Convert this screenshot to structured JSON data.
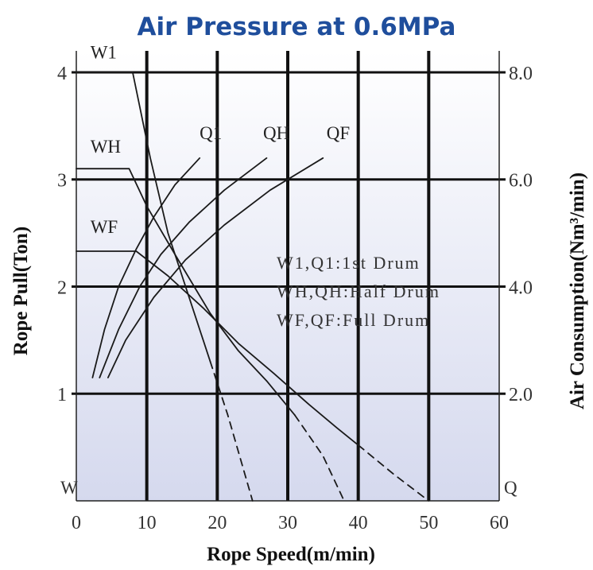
{
  "chart_data": {
    "type": "line",
    "title": "Air Pressure at 0.6MPa",
    "xlabel": "Rope Speed(m/min)",
    "ylabel_left": "Rope Pull(Ton)",
    "ylabel_right": "Air Consumption(Nm³/min)",
    "left_axis_symbol": "W",
    "right_axis_symbol": "Q",
    "xlim": [
      0,
      60
    ],
    "ylim_left": [
      0,
      4.2
    ],
    "ylim_right": [
      0,
      8.4
    ],
    "x_ticks": [
      "0",
      "10",
      "20",
      "30",
      "40",
      "50",
      "60"
    ],
    "y_ticks_left": [
      "1",
      "2",
      "3",
      "4"
    ],
    "y_ticks_right": [
      "2.0",
      "4.0",
      "6.0",
      "8.0"
    ],
    "grid": true,
    "legend_lines": [
      "W1,Q1:1st  Drum",
      "WH,QH:Half Drum",
      "WF,QF:Full Drum"
    ],
    "series": [
      {
        "name": "W1",
        "axis": "left",
        "style": "solid",
        "points": [
          [
            0,
            4.0
          ],
          [
            8,
            4.0
          ],
          [
            10.5,
            3.2
          ],
          [
            13,
            2.5
          ],
          [
            16,
            1.9
          ],
          [
            19,
            1.3
          ]
        ]
      },
      {
        "name": "W1",
        "axis": "left",
        "style": "dashed",
        "points": [
          [
            19,
            1.3
          ],
          [
            21.5,
            0.8
          ],
          [
            25,
            0
          ]
        ]
      },
      {
        "name": "WH",
        "axis": "left",
        "style": "solid",
        "points": [
          [
            0,
            3.1
          ],
          [
            7.5,
            3.1
          ],
          [
            10,
            2.75
          ],
          [
            14,
            2.3
          ],
          [
            19,
            1.75
          ],
          [
            23,
            1.4
          ],
          [
            27,
            1.12
          ],
          [
            31,
            0.8
          ]
        ]
      },
      {
        "name": "WH",
        "axis": "left",
        "style": "dashed",
        "points": [
          [
            31,
            0.8
          ],
          [
            35,
            0.42
          ],
          [
            38,
            0
          ]
        ]
      },
      {
        "name": "WF",
        "axis": "left",
        "style": "solid",
        "points": [
          [
            0,
            2.33
          ],
          [
            8.5,
            2.33
          ],
          [
            13,
            2.1
          ],
          [
            18,
            1.8
          ],
          [
            23,
            1.47
          ],
          [
            28,
            1.19
          ],
          [
            33,
            0.9
          ],
          [
            37,
            0.68
          ],
          [
            40,
            0.52
          ]
        ]
      },
      {
        "name": "WF",
        "axis": "left",
        "style": "dashed",
        "points": [
          [
            40,
            0.52
          ],
          [
            45,
            0.25
          ],
          [
            50,
            0
          ]
        ]
      },
      {
        "name": "Q1",
        "axis": "right",
        "style": "solid",
        "label": "Q1",
        "points": [
          [
            2.3,
            2.3
          ],
          [
            4,
            3.2
          ],
          [
            6,
            4.0
          ],
          [
            8.5,
            4.7
          ],
          [
            11,
            5.3
          ],
          [
            14,
            5.9
          ],
          [
            17.5,
            6.4
          ]
        ]
      },
      {
        "name": "QH",
        "axis": "right",
        "style": "solid",
        "label": "QH",
        "points": [
          [
            3.3,
            2.3
          ],
          [
            6,
            3.2
          ],
          [
            9,
            4.0
          ],
          [
            12,
            4.6
          ],
          [
            16,
            5.2
          ],
          [
            21,
            5.8
          ],
          [
            27,
            6.4
          ]
        ]
      },
      {
        "name": "QF",
        "axis": "right",
        "style": "solid",
        "label": "QF",
        "points": [
          [
            4.5,
            2.3
          ],
          [
            7,
            3.0
          ],
          [
            11,
            3.8
          ],
          [
            15.5,
            4.5
          ],
          [
            21,
            5.15
          ],
          [
            27.5,
            5.8
          ],
          [
            35,
            6.4
          ]
        ]
      }
    ],
    "curve_labels": [
      {
        "text": "W1",
        "x": 2,
        "y": 4.13,
        "axis": "left"
      },
      {
        "text": "WH",
        "x": 2,
        "y": 3.25,
        "axis": "left"
      },
      {
        "text": "WF",
        "x": 2,
        "y": 2.5,
        "axis": "left"
      },
      {
        "text": "Q1",
        "x": 17.5,
        "y": 6.75,
        "axis": "right"
      },
      {
        "text": "QH",
        "x": 26.5,
        "y": 6.75,
        "axis": "right"
      },
      {
        "text": "QF",
        "x": 35.5,
        "y": 6.75,
        "axis": "right"
      }
    ]
  }
}
